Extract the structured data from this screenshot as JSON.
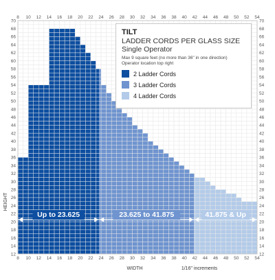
{
  "chart_data": {
    "type": "area",
    "legend": {
      "title": "TILT",
      "subtitle": "LADDER CORDS PER GLASS SIZE",
      "subtitle2": "Single Operator",
      "note_line1": "Max 9 square feet (no more than 36\" in one direction)",
      "note_line2": "Operator location top right",
      "entries": [
        {
          "label": "2 Ladder Cords",
          "color": "#0d4ea0"
        },
        {
          "label": "3 Ladder Cords",
          "color": "#6f94cf"
        },
        {
          "label": "4 Ladder Cords",
          "color": "#b3cbe9"
        }
      ]
    },
    "xlabel": "WIDTH",
    "xlabel_note": "1/16\" increments",
    "ylabel": "HEIGHT",
    "xlim": [
      8,
      54
    ],
    "ylim": [
      12,
      70
    ],
    "x_ticks": [
      8,
      10,
      12,
      14,
      16,
      18,
      20,
      22,
      24,
      26,
      28,
      30,
      32,
      34,
      36,
      38,
      40,
      42,
      44,
      46,
      48,
      50,
      52,
      54
    ],
    "y_ticks": [
      12,
      14,
      16,
      18,
      20,
      22,
      24,
      26,
      28,
      30,
      32,
      34,
      36,
      38,
      40,
      42,
      44,
      46,
      48,
      50,
      52,
      54,
      56,
      58,
      60,
      62,
      64,
      66,
      68,
      70
    ],
    "grid": true,
    "ranges": [
      {
        "label": "Up to 23.625",
        "from": 8,
        "to": 23.625,
        "color": "#0d4ea0"
      },
      {
        "label": "23.625 to 41.875",
        "from": 23.625,
        "to": 41.875,
        "color": "#6f94cf"
      },
      {
        "label": "41.875 & Up",
        "from": 41.875,
        "to": 54,
        "color": "#b3cbe9"
      }
    ],
    "arrow_y": 20.5,
    "max_height_profile": [
      {
        "x": 8,
        "y": 36
      },
      {
        "x": 10,
        "y": 54
      },
      {
        "x": 14,
        "y": 68
      },
      {
        "x": 19,
        "y": 66
      },
      {
        "x": 20,
        "y": 64
      },
      {
        "x": 21,
        "y": 62
      },
      {
        "x": 22,
        "y": 60
      },
      {
        "x": 23,
        "y": 58
      },
      {
        "x": 24,
        "y": 54
      },
      {
        "x": 25,
        "y": 52
      },
      {
        "x": 26,
        "y": 50
      },
      {
        "x": 27,
        "y": 49
      },
      {
        "x": 28,
        "y": 47
      },
      {
        "x": 29,
        "y": 46
      },
      {
        "x": 30,
        "y": 44
      },
      {
        "x": 31,
        "y": 43
      },
      {
        "x": 32,
        "y": 42
      },
      {
        "x": 33,
        "y": 40
      },
      {
        "x": 34,
        "y": 39
      },
      {
        "x": 35,
        "y": 38
      },
      {
        "x": 36,
        "y": 37
      },
      {
        "x": 37,
        "y": 36
      },
      {
        "x": 38,
        "y": 35
      },
      {
        "x": 39,
        "y": 34
      },
      {
        "x": 40,
        "y": 33
      },
      {
        "x": 41,
        "y": 32
      },
      {
        "x": 42,
        "y": 31
      },
      {
        "x": 43,
        "y": 31
      },
      {
        "x": 44,
        "y": 30
      },
      {
        "x": 45,
        "y": 29
      },
      {
        "x": 46,
        "y": 28
      },
      {
        "x": 47,
        "y": 28
      },
      {
        "x": 48,
        "y": 27
      },
      {
        "x": 49,
        "y": 27
      },
      {
        "x": 50,
        "y": 26
      },
      {
        "x": 51,
        "y": 25
      },
      {
        "x": 52,
        "y": 25
      },
      {
        "x": 53,
        "y": 25
      }
    ]
  }
}
